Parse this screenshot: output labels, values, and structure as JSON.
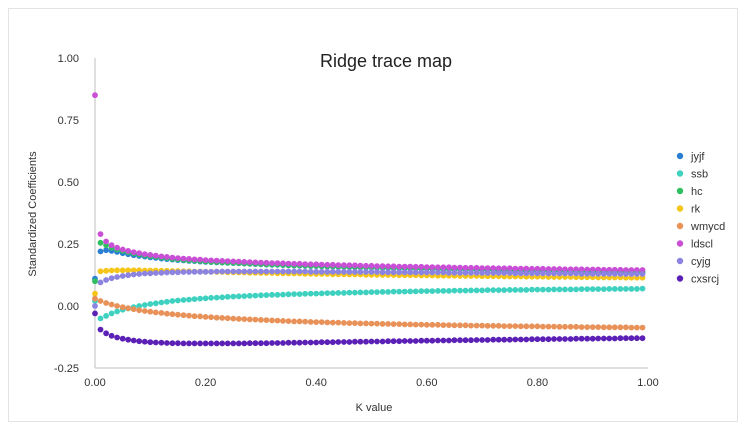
{
  "chart_data": {
    "type": "scatter",
    "title": "Ridge trace map",
    "xlabel": "K value",
    "ylabel": "Standardized Coefficients",
    "xlim": [
      0,
      1
    ],
    "ylim": [
      -0.25,
      1
    ],
    "x_ticks": [
      "0.00",
      "0.20",
      "0.40",
      "0.60",
      "0.80",
      "1.00"
    ],
    "y_ticks": [
      "-0.25",
      "0.00",
      "0.25",
      "0.50",
      "0.75",
      "1.00"
    ],
    "legend_position": "right",
    "x": [
      0.0,
      0.01,
      0.02,
      0.03,
      0.04,
      0.05,
      0.06,
      0.07,
      0.08,
      0.09,
      0.1,
      0.11,
      0.12,
      0.13,
      0.14,
      0.15,
      0.16,
      0.17,
      0.18,
      0.19,
      0.2,
      0.21,
      0.22,
      0.23,
      0.24,
      0.25,
      0.26,
      0.27,
      0.28,
      0.29,
      0.3,
      0.31,
      0.32,
      0.33,
      0.34,
      0.35,
      0.36,
      0.37,
      0.38,
      0.39,
      0.4,
      0.41,
      0.42,
      0.43,
      0.44,
      0.45,
      0.46,
      0.47,
      0.48,
      0.49,
      0.5,
      0.51,
      0.52,
      0.53,
      0.54,
      0.55,
      0.56,
      0.57,
      0.58,
      0.59,
      0.6,
      0.61,
      0.62,
      0.63,
      0.64,
      0.65,
      0.66,
      0.67,
      0.68,
      0.69,
      0.7,
      0.71,
      0.72,
      0.73,
      0.74,
      0.75,
      0.76,
      0.77,
      0.78,
      0.79,
      0.8,
      0.81,
      0.82,
      0.83,
      0.84,
      0.85,
      0.86,
      0.87,
      0.88,
      0.89,
      0.9,
      0.91,
      0.92,
      0.93,
      0.94,
      0.95,
      0.96,
      0.97,
      0.98,
      0.99
    ],
    "series": [
      {
        "name": "jyjf",
        "color": "#2a7fd4",
        "values": [
          0.11,
          0.22,
          0.225,
          0.222,
          0.218,
          0.213,
          0.209,
          0.205,
          0.202,
          0.199,
          0.196,
          0.194,
          0.191,
          0.189,
          0.187,
          0.185,
          0.184,
          0.182,
          0.181,
          0.179,
          0.178,
          0.177,
          0.176,
          0.175,
          0.174,
          0.173,
          0.172,
          0.171,
          0.17,
          0.169,
          0.168,
          0.167,
          0.166,
          0.166,
          0.165,
          0.164,
          0.163,
          0.163,
          0.162,
          0.161,
          0.161,
          0.16,
          0.159,
          0.159,
          0.158,
          0.158,
          0.157,
          0.156,
          0.156,
          0.155,
          0.155,
          0.154,
          0.154,
          0.153,
          0.153,
          0.152,
          0.152,
          0.151,
          0.151,
          0.15,
          0.15,
          0.149,
          0.149,
          0.148,
          0.148,
          0.147,
          0.147,
          0.147,
          0.146,
          0.146,
          0.145,
          0.145,
          0.145,
          0.144,
          0.144,
          0.143,
          0.143,
          0.143,
          0.142,
          0.142,
          0.141,
          0.141,
          0.141,
          0.14,
          0.14,
          0.14,
          0.139,
          0.139,
          0.139,
          0.138,
          0.138,
          0.138,
          0.137,
          0.137,
          0.137,
          0.136,
          0.136,
          0.136,
          0.135,
          0.135
        ]
      },
      {
        "name": "ssb",
        "color": "#3fd1c0",
        "values": [
          0.02,
          -0.05,
          -0.04,
          -0.03,
          -0.022,
          -0.015,
          -0.01,
          -0.005,
          0.0,
          0.004,
          0.008,
          0.011,
          0.014,
          0.017,
          0.02,
          0.022,
          0.024,
          0.026,
          0.028,
          0.03,
          0.031,
          0.033,
          0.034,
          0.035,
          0.037,
          0.038,
          0.039,
          0.04,
          0.041,
          0.042,
          0.043,
          0.044,
          0.045,
          0.045,
          0.046,
          0.047,
          0.048,
          0.048,
          0.049,
          0.05,
          0.05,
          0.051,
          0.052,
          0.052,
          0.053,
          0.053,
          0.054,
          0.054,
          0.055,
          0.055,
          0.056,
          0.056,
          0.057,
          0.057,
          0.058,
          0.058,
          0.058,
          0.059,
          0.059,
          0.06,
          0.06,
          0.06,
          0.061,
          0.061,
          0.061,
          0.062,
          0.062,
          0.062,
          0.063,
          0.063,
          0.063,
          0.064,
          0.064,
          0.064,
          0.064,
          0.065,
          0.065,
          0.065,
          0.065,
          0.066,
          0.066,
          0.066,
          0.066,
          0.067,
          0.067,
          0.067,
          0.067,
          0.067,
          0.068,
          0.068,
          0.068,
          0.068,
          0.068,
          0.069,
          0.069,
          0.069,
          0.069,
          0.069,
          0.069,
          0.07
        ]
      },
      {
        "name": "hc",
        "color": "#2fbf5f",
        "values": [
          0.1,
          0.255,
          0.245,
          0.235,
          0.228,
          0.222,
          0.217,
          0.212,
          0.208,
          0.204,
          0.201,
          0.198,
          0.195,
          0.193,
          0.19,
          0.188,
          0.186,
          0.184,
          0.183,
          0.181,
          0.18,
          0.178,
          0.177,
          0.176,
          0.175,
          0.174,
          0.173,
          0.172,
          0.171,
          0.17,
          0.169,
          0.168,
          0.167,
          0.167,
          0.166,
          0.165,
          0.164,
          0.164,
          0.163,
          0.162,
          0.162,
          0.161,
          0.16,
          0.16,
          0.159,
          0.159,
          0.158,
          0.158,
          0.157,
          0.157,
          0.156,
          0.156,
          0.155,
          0.155,
          0.154,
          0.154,
          0.153,
          0.153,
          0.152,
          0.152,
          0.152,
          0.151,
          0.151,
          0.15,
          0.15,
          0.15,
          0.149,
          0.149,
          0.148,
          0.148,
          0.148,
          0.147,
          0.147,
          0.147,
          0.146,
          0.146,
          0.146,
          0.145,
          0.145,
          0.145,
          0.144,
          0.144,
          0.144,
          0.143,
          0.143,
          0.143,
          0.143,
          0.142,
          0.142,
          0.142,
          0.141,
          0.141,
          0.141,
          0.141,
          0.14,
          0.14,
          0.14,
          0.14,
          0.139,
          0.139
        ]
      },
      {
        "name": "rk",
        "color": "#f5c518",
        "values": [
          0.05,
          0.14,
          0.142,
          0.143,
          0.144,
          0.144,
          0.144,
          0.144,
          0.144,
          0.143,
          0.143,
          0.143,
          0.142,
          0.142,
          0.141,
          0.141,
          0.14,
          0.14,
          0.139,
          0.139,
          0.138,
          0.138,
          0.137,
          0.137,
          0.136,
          0.136,
          0.135,
          0.135,
          0.134,
          0.134,
          0.133,
          0.133,
          0.133,
          0.132,
          0.132,
          0.131,
          0.131,
          0.131,
          0.13,
          0.13,
          0.129,
          0.129,
          0.129,
          0.128,
          0.128,
          0.128,
          0.127,
          0.127,
          0.127,
          0.126,
          0.126,
          0.126,
          0.125,
          0.125,
          0.125,
          0.124,
          0.124,
          0.124,
          0.124,
          0.123,
          0.123,
          0.123,
          0.122,
          0.122,
          0.122,
          0.122,
          0.121,
          0.121,
          0.121,
          0.121,
          0.12,
          0.12,
          0.12,
          0.12,
          0.119,
          0.119,
          0.119,
          0.119,
          0.118,
          0.118,
          0.118,
          0.118,
          0.117,
          0.117,
          0.117,
          0.117,
          0.117,
          0.116,
          0.116,
          0.116,
          0.116,
          0.115,
          0.115,
          0.115,
          0.115,
          0.115,
          0.114,
          0.114,
          0.114,
          0.114
        ]
      },
      {
        "name": "wmycd",
        "color": "#e8925a",
        "values": [
          0.03,
          0.02,
          0.012,
          0.006,
          0.0,
          -0.005,
          -0.009,
          -0.013,
          -0.017,
          -0.02,
          -0.023,
          -0.026,
          -0.028,
          -0.031,
          -0.033,
          -0.035,
          -0.037,
          -0.039,
          -0.041,
          -0.042,
          -0.044,
          -0.045,
          -0.047,
          -0.048,
          -0.049,
          -0.051,
          -0.052,
          -0.053,
          -0.054,
          -0.055,
          -0.056,
          -0.057,
          -0.058,
          -0.059,
          -0.06,
          -0.061,
          -0.062,
          -0.062,
          -0.063,
          -0.064,
          -0.065,
          -0.065,
          -0.066,
          -0.067,
          -0.067,
          -0.068,
          -0.069,
          -0.069,
          -0.07,
          -0.07,
          -0.071,
          -0.071,
          -0.072,
          -0.072,
          -0.073,
          -0.073,
          -0.074,
          -0.074,
          -0.075,
          -0.075,
          -0.076,
          -0.076,
          -0.076,
          -0.077,
          -0.077,
          -0.078,
          -0.078,
          -0.078,
          -0.079,
          -0.079,
          -0.079,
          -0.08,
          -0.08,
          -0.08,
          -0.081,
          -0.081,
          -0.081,
          -0.082,
          -0.082,
          -0.082,
          -0.082,
          -0.083,
          -0.083,
          -0.083,
          -0.084,
          -0.084,
          -0.084,
          -0.084,
          -0.085,
          -0.085,
          -0.085,
          -0.085,
          -0.086,
          -0.086,
          -0.086,
          -0.086,
          -0.086,
          -0.087,
          -0.087,
          -0.087
        ]
      },
      {
        "name": "ldscl",
        "color": "#c94fd6",
        "values": [
          0.85,
          0.29,
          0.26,
          0.245,
          0.235,
          0.228,
          0.222,
          0.217,
          0.213,
          0.209,
          0.206,
          0.203,
          0.2,
          0.198,
          0.195,
          0.193,
          0.191,
          0.19,
          0.188,
          0.187,
          0.185,
          0.184,
          0.183,
          0.182,
          0.181,
          0.18,
          0.179,
          0.178,
          0.177,
          0.176,
          0.175,
          0.174,
          0.173,
          0.173,
          0.172,
          0.171,
          0.17,
          0.17,
          0.169,
          0.168,
          0.168,
          0.167,
          0.166,
          0.166,
          0.165,
          0.165,
          0.164,
          0.164,
          0.163,
          0.162,
          0.162,
          0.161,
          0.161,
          0.16,
          0.16,
          0.159,
          0.159,
          0.159,
          0.158,
          0.158,
          0.157,
          0.157,
          0.156,
          0.156,
          0.156,
          0.155,
          0.155,
          0.154,
          0.154,
          0.154,
          0.153,
          0.153,
          0.153,
          0.152,
          0.152,
          0.152,
          0.151,
          0.151,
          0.151,
          0.15,
          0.15,
          0.15,
          0.149,
          0.149,
          0.149,
          0.148,
          0.148,
          0.148,
          0.148,
          0.147,
          0.147,
          0.147,
          0.146,
          0.146,
          0.146,
          0.146,
          0.145,
          0.145,
          0.145,
          0.145
        ]
      },
      {
        "name": "cyjg",
        "color": "#8c84e0",
        "values": [
          0.0,
          0.095,
          0.105,
          0.112,
          0.117,
          0.121,
          0.124,
          0.127,
          0.129,
          0.131,
          0.132,
          0.133,
          0.134,
          0.135,
          0.136,
          0.136,
          0.137,
          0.137,
          0.138,
          0.138,
          0.138,
          0.138,
          0.139,
          0.139,
          0.139,
          0.139,
          0.139,
          0.139,
          0.139,
          0.139,
          0.139,
          0.139,
          0.139,
          0.139,
          0.139,
          0.139,
          0.139,
          0.139,
          0.139,
          0.138,
          0.138,
          0.138,
          0.138,
          0.138,
          0.138,
          0.138,
          0.137,
          0.137,
          0.137,
          0.137,
          0.137,
          0.137,
          0.136,
          0.136,
          0.136,
          0.136,
          0.136,
          0.136,
          0.135,
          0.135,
          0.135,
          0.135,
          0.135,
          0.135,
          0.134,
          0.134,
          0.134,
          0.134,
          0.134,
          0.134,
          0.133,
          0.133,
          0.133,
          0.133,
          0.133,
          0.133,
          0.132,
          0.132,
          0.132,
          0.132,
          0.132,
          0.132,
          0.131,
          0.131,
          0.131,
          0.131,
          0.131,
          0.131,
          0.13,
          0.13,
          0.13,
          0.13,
          0.13,
          0.13,
          0.13,
          0.129,
          0.129,
          0.129,
          0.129,
          0.129
        ]
      },
      {
        "name": "cxsrcj",
        "color": "#5b21b6",
        "values": [
          -0.03,
          -0.095,
          -0.11,
          -0.12,
          -0.127,
          -0.132,
          -0.136,
          -0.139,
          -0.142,
          -0.144,
          -0.146,
          -0.147,
          -0.148,
          -0.149,
          -0.15,
          -0.15,
          -0.151,
          -0.151,
          -0.151,
          -0.151,
          -0.151,
          -0.151,
          -0.151,
          -0.151,
          -0.151,
          -0.151,
          -0.151,
          -0.151,
          -0.15,
          -0.15,
          -0.15,
          -0.15,
          -0.149,
          -0.149,
          -0.149,
          -0.148,
          -0.148,
          -0.148,
          -0.147,
          -0.147,
          -0.147,
          -0.146,
          -0.146,
          -0.146,
          -0.145,
          -0.145,
          -0.145,
          -0.144,
          -0.144,
          -0.144,
          -0.143,
          -0.143,
          -0.143,
          -0.142,
          -0.142,
          -0.142,
          -0.141,
          -0.141,
          -0.141,
          -0.14,
          -0.14,
          -0.14,
          -0.139,
          -0.139,
          -0.139,
          -0.138,
          -0.138,
          -0.138,
          -0.138,
          -0.137,
          -0.137,
          -0.137,
          -0.136,
          -0.136,
          -0.136,
          -0.136,
          -0.135,
          -0.135,
          -0.135,
          -0.134,
          -0.134,
          -0.134,
          -0.134,
          -0.133,
          -0.133,
          -0.133,
          -0.133,
          -0.132,
          -0.132,
          -0.132,
          -0.132,
          -0.131,
          -0.131,
          -0.131,
          -0.131,
          -0.13,
          -0.13,
          -0.13,
          -0.13,
          -0.13
        ]
      }
    ]
  }
}
